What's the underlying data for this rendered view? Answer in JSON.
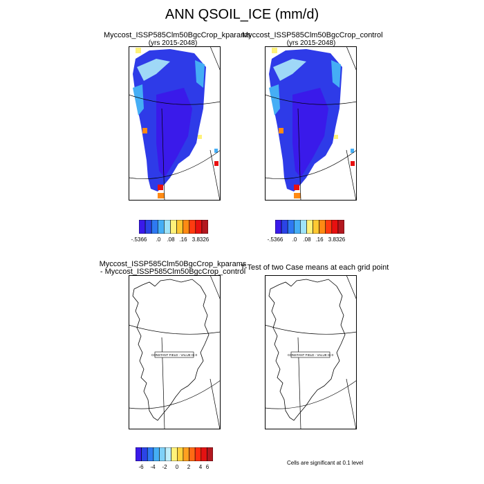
{
  "figure": {
    "title": "ANN QSOIL_ICE (mm/d)"
  },
  "panels": {
    "top_left": {
      "title": "Myccost_ISSP585Clm50BgcCrop_kparams",
      "subtitle": "(yrs 2015-2048)"
    },
    "top_right": {
      "title": "Myccost_ISSP585Clm50BgcCrop_control",
      "subtitle": "(yrs 2015-2048)"
    },
    "bottom_left": {
      "title_line1": "Myccost_ISSP585Clm50BgcCrop_kparams",
      "title_line2": "- Myccost_ISSP585Clm50BgcCrop_control",
      "center_label": "CONSTANT FIELD - VALUE IS 0"
    },
    "bottom_right": {
      "title": "T-Test of two Case means at each grid point",
      "center_label": "CONSTANT FIELD - VALUE IS 0",
      "note": "Cells are significant at 0.1 level"
    }
  },
  "colorbars": {
    "top": {
      "labels": [
        "-.5366",
        ".0",
        ".08",
        ".16",
        "3.8326"
      ],
      "colors": [
        "#3a1aea",
        "#2b44e6",
        "#2e79f2",
        "#45aef5",
        "#9fe4f9",
        "#fff27a",
        "#ffc832",
        "#ff8a14",
        "#ff3b10",
        "#e81010",
        "#b3181f"
      ]
    },
    "bottom": {
      "labels": [
        "-6",
        "-4",
        "-2",
        "0",
        "2",
        "4",
        "6"
      ],
      "colors": [
        "#3a1aea",
        "#2b44e6",
        "#2e79f2",
        "#45aef5",
        "#7fd1f8",
        "#bfeefb",
        "#fff27a",
        "#ffd23c",
        "#ffa020",
        "#ff6a14",
        "#ff3010",
        "#e41212",
        "#b3181f"
      ]
    }
  }
}
